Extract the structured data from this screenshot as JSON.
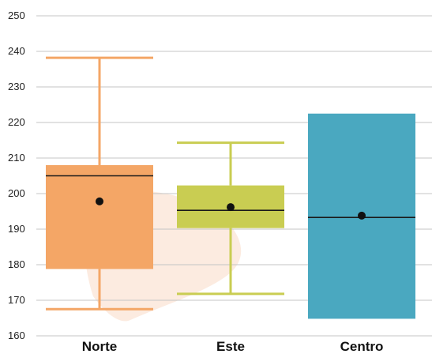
{
  "chart_data": {
    "type": "boxplot",
    "title": "",
    "xlabel": "",
    "ylabel": "",
    "ylim": [
      160,
      250
    ],
    "yticks": [
      160,
      170,
      180,
      190,
      200,
      210,
      220,
      230,
      240,
      250
    ],
    "grid": "horizontal",
    "categories": [
      "Norte",
      "Este",
      "Centro"
    ],
    "boxes": [
      {
        "category": "Norte",
        "color": "#f4a666",
        "whisker_low": 167.5,
        "q1": 178.8,
        "median": 205.0,
        "q3": 208.0,
        "whisker_high": 238.2,
        "mean": 197.8
      },
      {
        "category": "Este",
        "color": "#c9cd52",
        "whisker_low": 171.8,
        "q1": 190.3,
        "median": 195.3,
        "q3": 202.3,
        "whisker_high": 214.3,
        "mean": 196.2
      },
      {
        "category": "Centro",
        "color": "#4aa8c0",
        "whisker_low": null,
        "q1": 164.8,
        "median": 193.3,
        "q3": 222.5,
        "whisker_high": null,
        "mean": 193.8
      }
    ]
  },
  "colors": {
    "grid": "#c4c4c4",
    "median": "#1a1a1a",
    "mean_marker": "#111111",
    "background_blob": "#fcebe0"
  }
}
